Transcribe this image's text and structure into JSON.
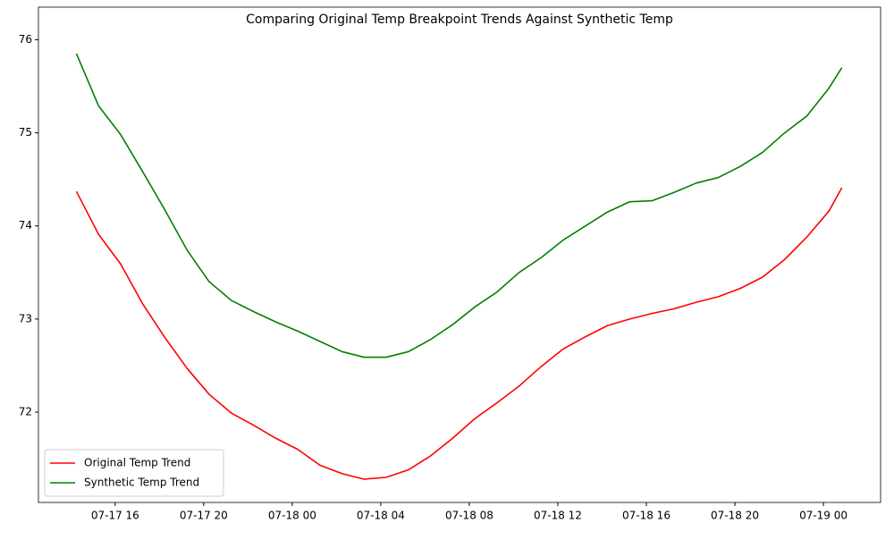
{
  "chart_data": {
    "type": "line",
    "title": "Comparing Original Temp Breakpoint Trends Against Synthetic Temp",
    "x": [
      "07-17 14:15",
      "07-17 15:15",
      "07-17 16:15",
      "07-17 17:15",
      "07-17 18:15",
      "07-17 19:15",
      "07-17 20:15",
      "07-17 21:15",
      "07-17 22:15",
      "07-17 23:15",
      "07-18 00:15",
      "07-18 01:15",
      "07-18 02:15",
      "07-18 03:15",
      "07-18 04:15",
      "07-18 05:15",
      "07-18 06:15",
      "07-18 07:15",
      "07-18 08:15",
      "07-18 09:15",
      "07-18 10:15",
      "07-18 11:15",
      "07-18 12:15",
      "07-18 13:15",
      "07-18 14:15",
      "07-18 15:15",
      "07-18 16:15",
      "07-18 17:15",
      "07-18 18:15",
      "07-18 19:15",
      "07-18 20:15",
      "07-18 21:15",
      "07-18 22:15",
      "07-18 23:15",
      "07-19 00:15",
      "07-19 00:50"
    ],
    "series": [
      {
        "name": "Original Temp Trend",
        "color": "#ff0000",
        "values": [
          74.37,
          73.91,
          73.59,
          73.16,
          72.8,
          72.47,
          72.19,
          71.99,
          71.86,
          71.72,
          71.6,
          71.43,
          71.34,
          71.28,
          71.3,
          71.38,
          71.53,
          71.72,
          71.93,
          72.1,
          72.28,
          72.49,
          72.68,
          72.81,
          72.93,
          73.0,
          73.06,
          73.11,
          73.18,
          73.24,
          73.33,
          73.45,
          73.64,
          73.88,
          74.16,
          74.41
        ]
      },
      {
        "name": "Synthetic Temp Trend",
        "color": "#008000",
        "values": [
          75.85,
          75.29,
          74.98,
          74.58,
          74.17,
          73.74,
          73.4,
          73.2,
          73.08,
          72.97,
          72.87,
          72.76,
          72.65,
          72.59,
          72.59,
          72.65,
          72.78,
          72.94,
          73.13,
          73.29,
          73.5,
          73.66,
          73.85,
          74.0,
          74.15,
          74.26,
          74.27,
          74.36,
          74.46,
          74.52,
          74.64,
          74.79,
          75.0,
          75.18,
          75.48,
          75.7
        ]
      }
    ],
    "xlim": [
      "07-17 12:32",
      "07-19 02:35"
    ],
    "xticks": [
      "07-17 16",
      "07-17 20",
      "07-18 00",
      "07-18 04",
      "07-18 08",
      "07-18 12",
      "07-18 16",
      "07-18 20",
      "07-19 00"
    ],
    "ylim": [
      71.03,
      76.35
    ],
    "yticks": [
      72,
      73,
      74,
      75,
      76
    ],
    "legend": "lower left"
  }
}
